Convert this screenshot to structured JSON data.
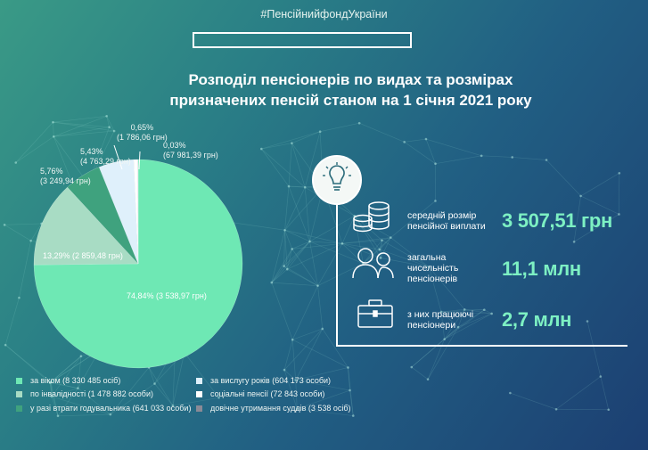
{
  "hashtag": "#ПенсійнийфондУкраїни",
  "title_line1": "Розподіл пенсіонерів по видах та розмірах",
  "title_line2": "призначених пенсій станом на 1 січня 2021 року",
  "pie_labels": {
    "vik": "74,84% (3 538,97 грн)",
    "invalid": "13,29% (2 859,48 грн)",
    "gody_pct": "5,76%",
    "gody_amt": "(3 249,94 грн)",
    "vysl_pct": "5,43%",
    "vysl_amt": "(4 763,29 грн)",
    "soc_pct": "0,65%",
    "soc_amt": "(1 786,06 грн)",
    "sud_pct": "0,03%",
    "sud_amt": "(67 981,39 грн)"
  },
  "legend": [
    "за віком (8 330 485 осіб)",
    "по інвалідності (1 478 882 особи)",
    "у разі втрати годувальника (641 033 особи)",
    "за вислугу років (604 173 особи)",
    "соціальні пенсії (72 843 особи)",
    "довічне утримання суддів (3 538 осіб)"
  ],
  "stats": {
    "avg_label_1": "середній розмір",
    "avg_label_2": "пенсійної виплати",
    "avg_value": "3 507,51 грн",
    "total_label_1": "загальна",
    "total_label_2": "чисельність",
    "total_label_3": "пенсіонерів",
    "total_value": "11,1 млн",
    "working_label_1": "з них працюючі",
    "working_label_2": "пенсіонери",
    "working_value": "2,7 млн"
  },
  "icons": [
    "lightbulb-icon",
    "coins-icon",
    "people-icon",
    "briefcase-icon"
  ],
  "colors": {
    "vik": "#6ee8b4",
    "invalid": "#a8dcc4",
    "gody": "#3fa27e",
    "vysl": "#dff0fb",
    "soc": "#ffffff",
    "sud": "#8a8a96",
    "accent_value": "#7df0c3"
  },
  "chart_data": {
    "type": "pie",
    "title": "Розподіл пенсіонерів по видах та розмірах призначених пенсій станом на 1 січня 2021 року",
    "series": [
      {
        "name": "за віком",
        "persons": 8330485,
        "share_pct": 74.84,
        "avg_pension_uah": 3538.97
      },
      {
        "name": "по інвалідності",
        "persons": 1478882,
        "share_pct": 13.29,
        "avg_pension_uah": 2859.48
      },
      {
        "name": "у разі втрати годувальника",
        "persons": 641033,
        "share_pct": 5.76,
        "avg_pension_uah": 3249.94
      },
      {
        "name": "за вислугу років",
        "persons": 604173,
        "share_pct": 5.43,
        "avg_pension_uah": 4763.29
      },
      {
        "name": "соціальні пенсії",
        "persons": 72843,
        "share_pct": 0.65,
        "avg_pension_uah": 1786.06
      },
      {
        "name": "довічне утримання суддів",
        "persons": 3538,
        "share_pct": 0.03,
        "avg_pension_uah": 67981.39
      }
    ],
    "legend_position": "bottom"
  }
}
